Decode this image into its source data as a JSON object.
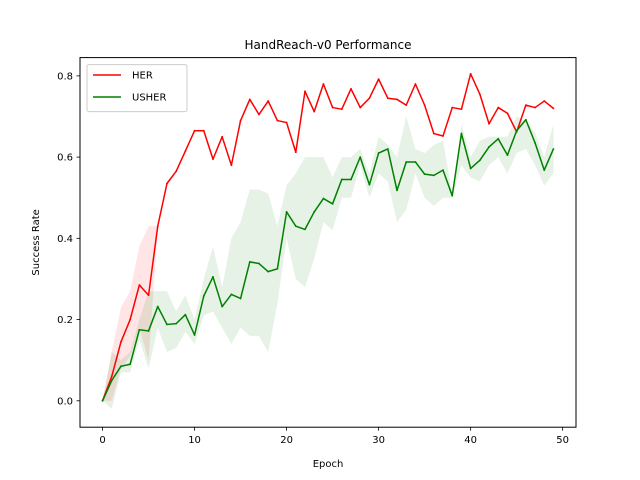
{
  "chart_data": {
    "type": "line",
    "title": "HandReach-v0 Performance",
    "xlabel": "Epoch",
    "ylabel": "Success Rate",
    "xlim": [
      -2.45,
      51.45
    ],
    "ylim": [
      -0.065,
      0.845
    ],
    "xticks": [
      0,
      10,
      20,
      30,
      40,
      50
    ],
    "yticks": [
      0.0,
      0.2,
      0.4,
      0.6,
      0.8
    ],
    "xtick_labels": [
      "0",
      "10",
      "20",
      "30",
      "40",
      "50"
    ],
    "ytick_labels": [
      "0.0",
      "0.2",
      "0.4",
      "0.6",
      "0.8"
    ],
    "grid": false,
    "legend_position": "top-left",
    "x": [
      0,
      1,
      2,
      3,
      4,
      5,
      6,
      7,
      8,
      9,
      10,
      11,
      12,
      13,
      14,
      15,
      16,
      17,
      18,
      19,
      20,
      21,
      22,
      23,
      24,
      25,
      26,
      27,
      28,
      29,
      30,
      31,
      32,
      33,
      34,
      35,
      36,
      37,
      38,
      39,
      40,
      41,
      42,
      43,
      44,
      45,
      46,
      47,
      48,
      49
    ],
    "series": [
      {
        "name": "HER",
        "color": "#ff0000",
        "values": [
          0.0,
          0.06,
          0.145,
          0.2,
          0.285,
          0.26,
          0.43,
          0.535,
          0.565,
          0.615,
          0.665,
          0.665,
          0.595,
          0.65,
          0.58,
          0.69,
          0.742,
          0.705,
          0.738,
          0.69,
          0.685,
          0.612,
          0.762,
          0.712,
          0.78,
          0.722,
          0.718,
          0.768,
          0.722,
          0.745,
          0.792,
          0.745,
          0.742,
          0.728,
          0.78,
          0.728,
          0.658,
          0.652,
          0.722,
          0.718,
          0.805,
          0.755,
          0.682,
          0.722,
          0.708,
          0.662,
          0.728,
          0.722,
          0.738,
          0.72
        ],
        "band_lower": [
          0.0,
          0.0,
          0.08,
          0.11,
          0.18,
          0.1,
          0.42,
          0.53,
          0.565,
          0.615,
          0.665,
          0.665,
          0.595,
          0.65,
          0.58,
          0.69,
          0.742,
          0.705,
          0.738,
          0.69,
          0.685,
          0.612,
          0.762,
          0.712,
          0.78,
          0.722,
          0.718,
          0.768,
          0.722,
          0.745,
          0.792,
          0.745,
          0.742,
          0.728,
          0.78,
          0.728,
          0.658,
          0.652,
          0.722,
          0.718,
          0.805,
          0.755,
          0.682,
          0.722,
          0.708,
          0.662,
          0.728,
          0.722,
          0.738,
          0.72
        ],
        "band_upper": [
          0.0,
          0.12,
          0.23,
          0.27,
          0.38,
          0.43,
          0.43,
          0.54,
          0.565,
          0.615,
          0.665,
          0.665,
          0.595,
          0.65,
          0.58,
          0.69,
          0.742,
          0.705,
          0.738,
          0.69,
          0.685,
          0.612,
          0.762,
          0.712,
          0.78,
          0.722,
          0.718,
          0.768,
          0.722,
          0.745,
          0.792,
          0.745,
          0.742,
          0.728,
          0.78,
          0.728,
          0.658,
          0.652,
          0.722,
          0.718,
          0.805,
          0.755,
          0.682,
          0.722,
          0.708,
          0.662,
          0.728,
          0.722,
          0.738,
          0.72
        ]
      },
      {
        "name": "USHER",
        "color": "#008000",
        "values": [
          0.0,
          0.05,
          0.085,
          0.09,
          0.175,
          0.172,
          0.232,
          0.188,
          0.19,
          0.212,
          0.162,
          0.258,
          0.305,
          0.232,
          0.262,
          0.252,
          0.342,
          0.338,
          0.318,
          0.325,
          0.465,
          0.43,
          0.422,
          0.465,
          0.498,
          0.485,
          0.545,
          0.545,
          0.6,
          0.532,
          0.61,
          0.62,
          0.518,
          0.588,
          0.588,
          0.558,
          0.555,
          0.568,
          0.505,
          0.658,
          0.572,
          0.592,
          0.625,
          0.645,
          0.605,
          0.665,
          0.692,
          0.635,
          0.568,
          0.62
        ],
        "band_lower": [
          0.0,
          -0.02,
          0.07,
          0.07,
          0.15,
          0.08,
          0.18,
          0.12,
          0.13,
          0.17,
          0.14,
          0.21,
          0.22,
          0.18,
          0.14,
          0.18,
          0.16,
          0.16,
          0.12,
          0.24,
          0.4,
          0.3,
          0.28,
          0.35,
          0.44,
          0.42,
          0.5,
          0.5,
          0.58,
          0.5,
          0.56,
          0.54,
          0.44,
          0.47,
          0.56,
          0.5,
          0.48,
          0.5,
          0.5,
          0.58,
          0.55,
          0.54,
          0.58,
          0.6,
          0.56,
          0.61,
          0.62,
          0.58,
          0.53,
          0.56
        ],
        "band_upper": [
          0.0,
          0.12,
          0.1,
          0.12,
          0.2,
          0.27,
          0.27,
          0.27,
          0.22,
          0.26,
          0.2,
          0.3,
          0.38,
          0.28,
          0.4,
          0.44,
          0.52,
          0.52,
          0.51,
          0.43,
          0.53,
          0.56,
          0.6,
          0.6,
          0.6,
          0.55,
          0.6,
          0.6,
          0.62,
          0.56,
          0.65,
          0.63,
          0.6,
          0.7,
          0.62,
          0.61,
          0.63,
          0.64,
          0.51,
          0.68,
          0.6,
          0.64,
          0.65,
          0.65,
          0.65,
          0.7,
          0.69,
          0.66,
          0.6,
          0.68
        ]
      }
    ]
  }
}
